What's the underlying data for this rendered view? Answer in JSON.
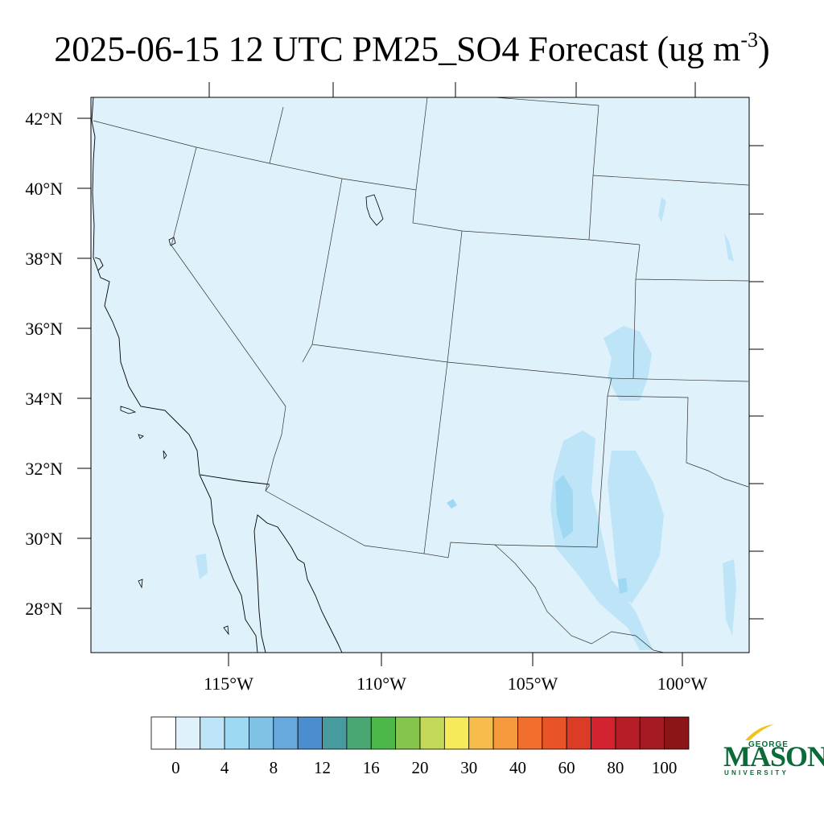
{
  "title": {
    "main": "2025-06-15 12 UTC PM25_SO4 Forecast (ug m",
    "sup": "-3",
    "close": ")"
  },
  "map": {
    "lat_labels": [
      "42°N",
      "40°N",
      "38°N",
      "36°N",
      "34°N",
      "32°N",
      "30°N",
      "28°N"
    ],
    "lon_labels": [
      "115°W",
      "110°W",
      "105°W",
      "100°W"
    ],
    "background_color": "#dff1fb",
    "field": "PM25_SO4"
  },
  "colorbar": {
    "labels": [
      "0",
      "4",
      "8",
      "12",
      "16",
      "20",
      "30",
      "40",
      "60",
      "80",
      "100"
    ],
    "colors": [
      "#ffffff",
      "#dff1fb",
      "#bde5f7",
      "#9fd8f3",
      "#80c2e6",
      "#67a9dd",
      "#4a8ed0",
      "#479b9e",
      "#4aa774",
      "#4cb84a",
      "#86c54d",
      "#c3d957",
      "#f6e95a",
      "#f6bd4c",
      "#f59a3c",
      "#f26e2c",
      "#ea5227",
      "#dc3b26",
      "#d32330",
      "#b71d27",
      "#a51a23",
      "#8c1517"
    ]
  },
  "logo": {
    "line1": "GEORGE",
    "line2": "MASON",
    "line3": "UNIVERSITY",
    "color": "#0a6a38",
    "accent": "#f2c31a"
  }
}
